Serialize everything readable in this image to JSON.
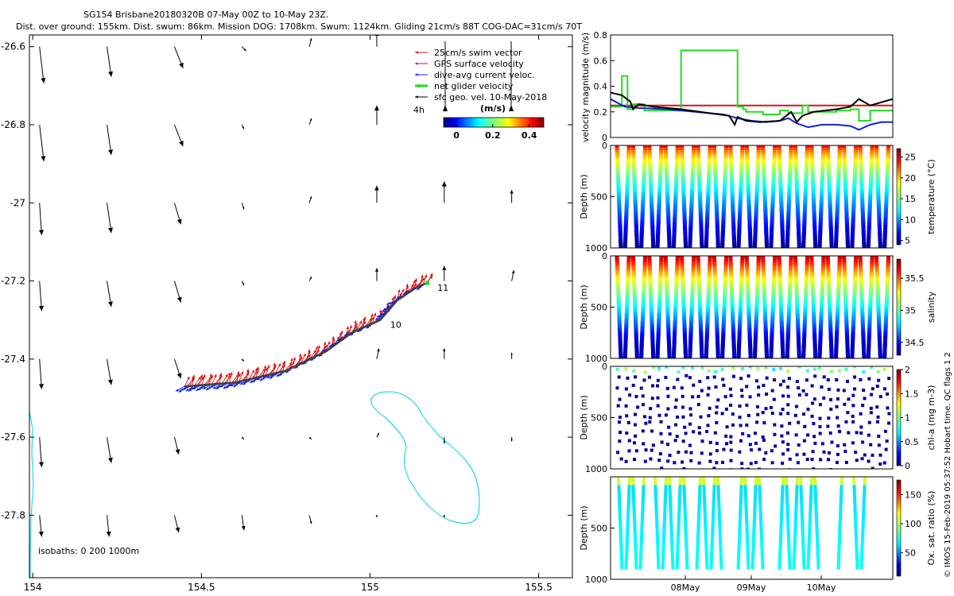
{
  "title": {
    "line1": "SG154 Brisbane20180320B 07-May 00Z to 10-May 23Z.",
    "line2": "Dist. over ground: 155km. Dist. swum: 86km. Mission DOG: 1708km. Swum: 1124km. Gliding 21cm/s 88T COG-DAC=31cm/s 70T"
  },
  "colors": {
    "swim": "#e01010",
    "gps": "#c000c0",
    "dac": "#1020e0",
    "net": "#22dd22",
    "sfc": "#000000",
    "isobath": "#22d8e8",
    "track": "#404040"
  },
  "chart_data": [
    {
      "type": "scatter",
      "name": "map",
      "xlim": [
        153.99,
        155.6
      ],
      "ylim": [
        -27.96,
        -26.57
      ],
      "xticks": [
        "154",
        "154.5",
        "155",
        "155.5"
      ],
      "yticks": [
        "-26.6",
        "-26.8",
        "-27",
        "-27.2",
        "-27.4",
        "-27.6",
        "-27.8"
      ],
      "legend": [
        {
          "label": "25cm/s swim vector",
          "color_key": "swim",
          "thick": false
        },
        {
          "label": "GPS surface velocity",
          "color_key": "gps",
          "thick": false
        },
        {
          "label": "dive-avg current veloc.",
          "color_key": "dac",
          "thick": false
        },
        {
          "label": "net glider velocity",
          "color_key": "net",
          "thick": true
        },
        {
          "label": "sfc geo. vel. 10-May-2018",
          "color_key": "sfc",
          "thick": false
        }
      ],
      "scale_label": "4h",
      "colorbar": {
        "title": "(m/s)",
        "ticks": [
          "0",
          "0.2",
          "0.4"
        ]
      },
      "isobath_label": "isobaths: 0   200   1000m",
      "track": [
        [
          154.45,
          -27.47
        ],
        [
          154.6,
          -27.46
        ],
        [
          154.75,
          -27.43
        ],
        [
          154.87,
          -27.38
        ],
        [
          154.95,
          -27.33
        ],
        [
          155.03,
          -27.3
        ],
        [
          155.08,
          -27.25
        ],
        [
          155.14,
          -27.215
        ],
        [
          155.17,
          -27.205
        ]
      ],
      "day_labels": [
        {
          "text": "10",
          "x": 155.06,
          "y": -27.32
        },
        {
          "text": "11",
          "x": 155.2,
          "y": -27.225
        }
      ],
      "geo_vectors": {
        "lons": [
          154.02,
          154.22,
          154.42,
          154.62,
          154.82,
          155.02,
          155.22,
          155.42
        ],
        "lats": [
          -26.6,
          -26.8,
          -27.0,
          -27.2,
          -27.4,
          -27.6,
          -27.8
        ],
        "u": [
          [
            0.02,
            0.02,
            0.04,
            0.02,
            0.01,
            0.0,
            null,
            null
          ],
          [
            0.02,
            0.02,
            0.04,
            0.01,
            0.01,
            0.0,
            null,
            null
          ],
          [
            0.01,
            0.02,
            0.03,
            0.01,
            0.01,
            0.0,
            0.0,
            0.0
          ],
          [
            0.01,
            0.02,
            0.03,
            0.01,
            0.01,
            0.0,
            0.0,
            0.01
          ],
          [
            0.01,
            0.02,
            0.03,
            0.01,
            0.01,
            0.01,
            0.0,
            0.0
          ],
          [
            0.01,
            0.02,
            0.02,
            0.01,
            0.01,
            0.01,
            0.0,
            0.0
          ],
          [
            0.01,
            0.01,
            0.02,
            0.01,
            0.01,
            0.0,
            0.0,
            null
          ]
        ],
        "v": [
          [
            -0.17,
            -0.14,
            -0.1,
            -0.02,
            0.04,
            0.07,
            null,
            null
          ],
          [
            -0.17,
            -0.14,
            -0.1,
            -0.02,
            0.03,
            0.09,
            null,
            null
          ],
          [
            -0.15,
            -0.14,
            -0.1,
            -0.03,
            0.03,
            0.08,
            0.1,
            0.06
          ],
          [
            -0.14,
            -0.12,
            -0.1,
            -0.02,
            0.02,
            0.06,
            0.07,
            0.05
          ],
          [
            -0.14,
            -0.12,
            -0.09,
            -0.01,
            0.01,
            0.05,
            0.05,
            0.03
          ],
          [
            -0.14,
            -0.12,
            -0.08,
            -0.01,
            -0.01,
            0.02,
            -0.03,
            -0.02
          ],
          [
            -0.1,
            -0.1,
            -0.08,
            -0.07,
            -0.04,
            -0.01,
            -0.01,
            null
          ]
        ]
      }
    },
    {
      "type": "line",
      "name": "velocity",
      "ylabel": "velocity magnitude (m/s)",
      "xlim": [
        0,
        100
      ],
      "ylim": [
        0,
        0.8
      ],
      "yticks": [
        "0",
        "0.2",
        "0.4",
        "0.6",
        "0.8"
      ],
      "series": [
        {
          "name": "swim",
          "color_key": "swim",
          "x": [
            0,
            100
          ],
          "y": [
            0.25,
            0.25
          ]
        },
        {
          "name": "net",
          "color_key": "net",
          "x": [
            0,
            4,
            4,
            6,
            6,
            8,
            8,
            12,
            12,
            25,
            25,
            45,
            45,
            47,
            47,
            48,
            48,
            54,
            54,
            60,
            60,
            63,
            63,
            68,
            68,
            70,
            70,
            80,
            80,
            85,
            85,
            88,
            88,
            92,
            92,
            100
          ],
          "y": [
            0.24,
            0.24,
            0.48,
            0.48,
            0.22,
            0.22,
            0.26,
            0.26,
            0.21,
            0.21,
            0.68,
            0.68,
            0.24,
            0.24,
            0.22,
            0.22,
            0.2,
            0.2,
            0.18,
            0.18,
            0.21,
            0.21,
            0.19,
            0.19,
            0.25,
            0.25,
            0.2,
            0.2,
            0.21,
            0.21,
            0.22,
            0.22,
            0.13,
            0.13,
            0.21,
            0.21
          ]
        },
        {
          "name": "dac",
          "color_key": "dac",
          "x": [
            0,
            5,
            10,
            20,
            30,
            40,
            45,
            50,
            55,
            60,
            63,
            66,
            70,
            75,
            80,
            85,
            88,
            92,
            96,
            100
          ],
          "y": [
            0.3,
            0.24,
            0.23,
            0.22,
            0.2,
            0.18,
            0.15,
            0.13,
            0.12,
            0.13,
            0.15,
            0.11,
            0.08,
            0.1,
            0.1,
            0.09,
            0.06,
            0.1,
            0.12,
            0.12
          ]
        },
        {
          "name": "sfc",
          "color_key": "sfc",
          "x": [
            0,
            4,
            7,
            8,
            10,
            15,
            25,
            35,
            42,
            44,
            45,
            48,
            53,
            60,
            64,
            66,
            68,
            72,
            80,
            85,
            88,
            92,
            100
          ],
          "y": [
            0.35,
            0.33,
            0.28,
            0.22,
            0.26,
            0.24,
            0.22,
            0.19,
            0.17,
            0.1,
            0.16,
            0.13,
            0.12,
            0.13,
            0.2,
            0.12,
            0.17,
            0.2,
            0.22,
            0.24,
            0.3,
            0.25,
            0.3
          ]
        }
      ]
    },
    {
      "type": "heatmap",
      "name": "temperature",
      "ylabel": "Depth (m)",
      "clabel": "temperature (°C)",
      "yticks": [
        "0",
        "500",
        "1000"
      ],
      "cticks": [
        "5",
        "10",
        "15",
        "20",
        "25"
      ],
      "vrange": [
        4,
        27
      ],
      "ylim": [
        0,
        1000
      ]
    },
    {
      "type": "heatmap",
      "name": "salinity",
      "ylabel": "Depth (m)",
      "clabel": "salinity",
      "yticks": [
        "0",
        "500",
        "1000"
      ],
      "cticks": [
        "34.5",
        "35",
        "35.5"
      ],
      "vrange": [
        34.3,
        35.8
      ],
      "ylim": [
        0,
        1000
      ]
    },
    {
      "type": "heatmap",
      "name": "chla",
      "ylabel": "Depth (m)",
      "clabel": "chl-a (mg m-3)",
      "yticks": [
        "0",
        "500",
        "1000"
      ],
      "cticks": [
        "0",
        "0.5",
        "1",
        "1.5",
        "2"
      ],
      "vrange": [
        0,
        2
      ],
      "ylim": [
        0,
        1000
      ]
    },
    {
      "type": "heatmap",
      "name": "oxygen",
      "ylabel": "Depth (m)",
      "clabel": "Ox. sat. ratio (%)",
      "yticks": [
        "500",
        "1000"
      ],
      "xticks": [
        "08May",
        "09May",
        "10May"
      ],
      "cticks": [
        "50",
        "100",
        "150"
      ],
      "vrange": [
        10,
        175
      ],
      "ylim": [
        0,
        1000
      ]
    }
  ],
  "side_note": "© IMOS 15-Feb-2019 05:37:52 Hobart time. QC flags 1  2"
}
